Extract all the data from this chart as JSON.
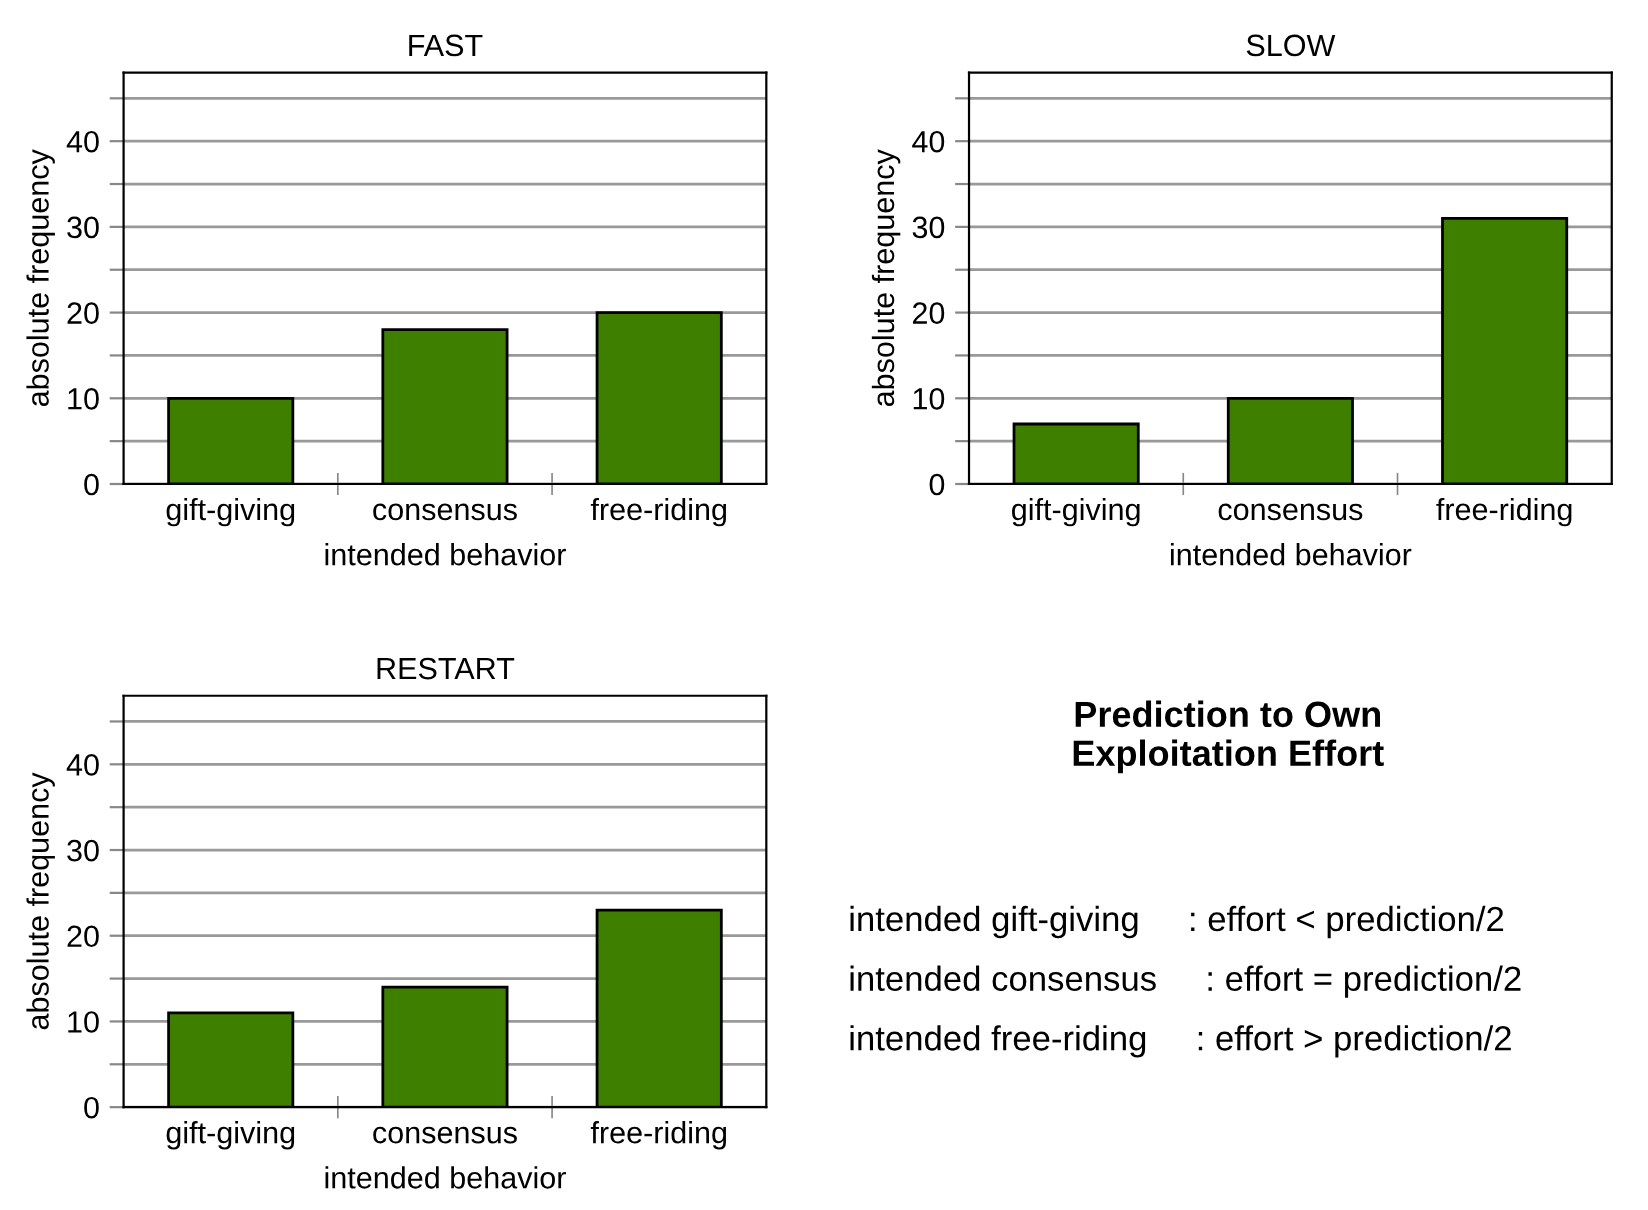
{
  "chart_data": [
    {
      "type": "bar",
      "title": "FAST",
      "xlabel": "intended behavior",
      "ylabel": "absolute frequency",
      "categories": [
        "gift-giving",
        "consensus",
        "free-riding"
      ],
      "values": [
        10,
        18,
        20
      ],
      "color": "#3f7f00",
      "ylim": [
        0,
        48
      ],
      "yticks": [
        0,
        {
          "value": 5,
          "label": null
        },
        10,
        {
          "value": 15,
          "label": null
        },
        20,
        {
          "value": 25,
          "label": null
        },
        30,
        {
          "value": 35,
          "label": null
        },
        40,
        {
          "value": 45,
          "label": null
        }
      ],
      "grid": "y",
      "legend": false
    },
    {
      "type": "bar",
      "title": "SLOW",
      "xlabel": "intended behavior",
      "ylabel": "absolute frequency",
      "categories": [
        "gift-giving",
        "consensus",
        "free-riding"
      ],
      "values": [
        7,
        10,
        31
      ],
      "color": "#3f7f00",
      "ylim": [
        0,
        48
      ],
      "yticks": [
        0,
        {
          "value": 5,
          "label": null
        },
        10,
        {
          "value": 15,
          "label": null
        },
        20,
        {
          "value": 25,
          "label": null
        },
        30,
        {
          "value": 35,
          "label": null
        },
        40,
        {
          "value": 45,
          "label": null
        }
      ],
      "grid": "y",
      "legend": false
    },
    {
      "type": "bar",
      "title": "RESTART",
      "xlabel": "intended behavior",
      "ylabel": "absolute frequency",
      "categories": [
        "gift-giving",
        "consensus",
        "free-riding"
      ],
      "values": [
        11,
        14,
        23
      ],
      "color": "#3f7f00",
      "ylim": [
        0,
        48
      ],
      "yticks": [
        0,
        {
          "value": 5,
          "label": null
        },
        10,
        {
          "value": 15,
          "label": null
        },
        20,
        {
          "value": 25,
          "label": null
        },
        30,
        {
          "value": 35,
          "label": null
        },
        40,
        {
          "value": 45,
          "label": null
        }
      ],
      "grid": "y",
      "legend": false
    },
    {
      "type": "other",
      "title": "Prediction to Own\nExploitation Effort",
      "annotations": [
        "intended gift-giving     : effort < prediction/2",
        "intended consensus     : effort = prediction/2",
        "intended free-riding     : effort > prediction/2"
      ]
    }
  ]
}
